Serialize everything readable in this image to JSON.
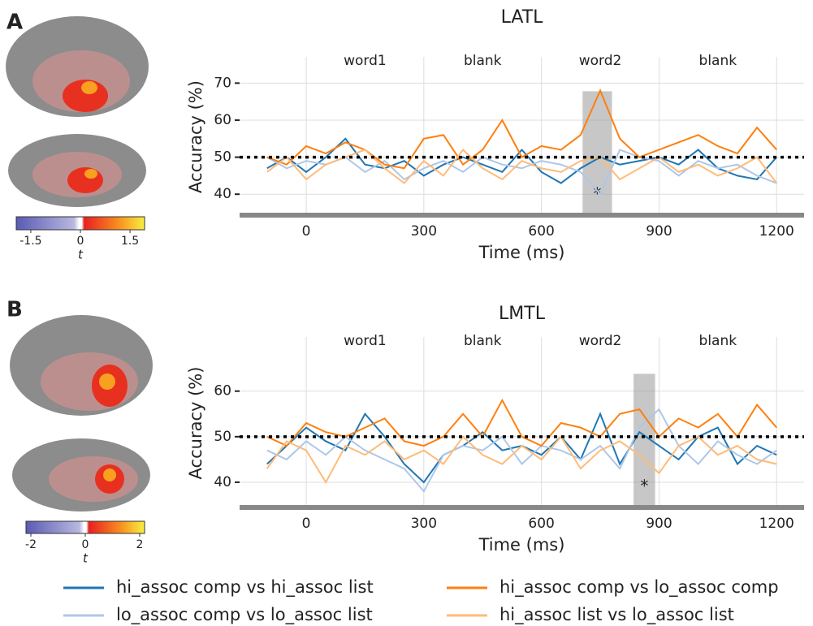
{
  "chart_data": [
    {
      "type": "line",
      "panel": "A",
      "title": "LATL",
      "xlabel": "Time (ms)",
      "ylabel": "Accuracy (%)",
      "epoch_labels": [
        "word1",
        "blank",
        "word2",
        "blank"
      ],
      "x": [
        -100,
        -50,
        0,
        50,
        100,
        150,
        200,
        250,
        300,
        350,
        400,
        450,
        500,
        550,
        600,
        650,
        700,
        750,
        800,
        850,
        900,
        950,
        1000,
        1050,
        1100,
        1150,
        1200
      ],
      "xlim": [
        -170,
        1270
      ],
      "xticks": [
        0,
        300,
        600,
        900,
        1200
      ],
      "ylim": [
        35,
        76
      ],
      "yticks": [
        40,
        50,
        60,
        70
      ],
      "chance": 50,
      "significant_window": [
        705,
        780
      ],
      "sig_label": "*",
      "series": [
        {
          "color": "#1f77b4",
          "values": [
            47,
            50,
            46,
            50,
            55,
            48,
            47,
            49,
            45,
            48,
            50,
            48,
            46,
            52,
            46,
            43,
            47,
            50,
            48,
            49,
            50,
            48,
            52,
            47,
            45,
            44,
            50
          ]
        },
        {
          "color": "#aec7e8",
          "values": [
            50,
            47,
            49,
            48,
            50,
            46,
            49,
            44,
            47,
            49,
            46,
            50,
            48,
            47,
            49,
            48,
            46,
            40,
            52,
            50,
            49,
            45,
            49,
            47,
            48,
            45,
            43
          ]
        },
        {
          "color": "#ff7f0e",
          "values": [
            50,
            48,
            53,
            51,
            54,
            52,
            48,
            47,
            55,
            56,
            48,
            52,
            60,
            50,
            53,
            52,
            56,
            68,
            55,
            50,
            52,
            54,
            56,
            53,
            51,
            58,
            52
          ]
        },
        {
          "color": "#ffbb78",
          "values": [
            46,
            50,
            44,
            48,
            50,
            52,
            47,
            43,
            49,
            45,
            52,
            47,
            44,
            49,
            47,
            46,
            49,
            50,
            44,
            47,
            50,
            46,
            48,
            45,
            47,
            50,
            43
          ]
        }
      ]
    },
    {
      "type": "line",
      "panel": "B",
      "title": "LMTL",
      "xlabel": "Time (ms)",
      "ylabel": "Accuracy (%)",
      "epoch_labels": [
        "word1",
        "blank",
        "word2",
        "blank"
      ],
      "x": [
        -100,
        -50,
        0,
        50,
        100,
        150,
        200,
        250,
        300,
        350,
        400,
        450,
        500,
        550,
        600,
        650,
        700,
        750,
        800,
        850,
        900,
        950,
        1000,
        1050,
        1100,
        1150,
        1200
      ],
      "xlim": [
        -170,
        1270
      ],
      "xticks": [
        0,
        300,
        600,
        900,
        1200
      ],
      "ylim": [
        35,
        71
      ],
      "yticks": [
        40,
        50,
        60
      ],
      "chance": 50,
      "significant_window": [
        835,
        890
      ],
      "sig_label": "*",
      "series": [
        {
          "name": "hi_assoc comp vs hi_assoc list",
          "color": "#1f77b4",
          "values": [
            44,
            48,
            52,
            49,
            47,
            55,
            50,
            44,
            40,
            46,
            48,
            51,
            47,
            48,
            46,
            50,
            45,
            55,
            44,
            51,
            48,
            45,
            50,
            52,
            44,
            48,
            46
          ]
        },
        {
          "name": "lo_assoc comp vs lo_assoc list",
          "color": "#aec7e8",
          "values": [
            47,
            45,
            49,
            46,
            50,
            47,
            45,
            43,
            38,
            46,
            48,
            47,
            50,
            44,
            48,
            47,
            45,
            48,
            43,
            52,
            56,
            48,
            44,
            49,
            46,
            44,
            47
          ]
        },
        {
          "name": "hi_assoc comp vs lo_assoc comp",
          "color": "#ff7f0e",
          "values": [
            50,
            48,
            53,
            51,
            50,
            52,
            54,
            49,
            48,
            50,
            55,
            50,
            58,
            50,
            48,
            53,
            52,
            50,
            55,
            56,
            50,
            54,
            52,
            55,
            50,
            57,
            52
          ]
        },
        {
          "name": "hi_assoc list vs lo_assoc list",
          "color": "#ffbb78",
          "values": [
            43,
            49,
            47,
            40,
            48,
            46,
            49,
            45,
            47,
            44,
            50,
            46,
            44,
            48,
            45,
            50,
            43,
            47,
            49,
            46,
            42,
            48,
            50,
            46,
            48,
            45,
            44
          ]
        }
      ]
    },
    {
      "type": "colorbar",
      "xlabel": "t",
      "xlim": [
        -1.94,
        1.94
      ],
      "xticks": [
        -1.5,
        0,
        1.5
      ]
    },
    {
      "type": "colorbar",
      "xlabel": "t",
      "xlim": [
        -2.18,
        2.18
      ],
      "xticks": [
        -2,
        0,
        2
      ]
    }
  ]
}
